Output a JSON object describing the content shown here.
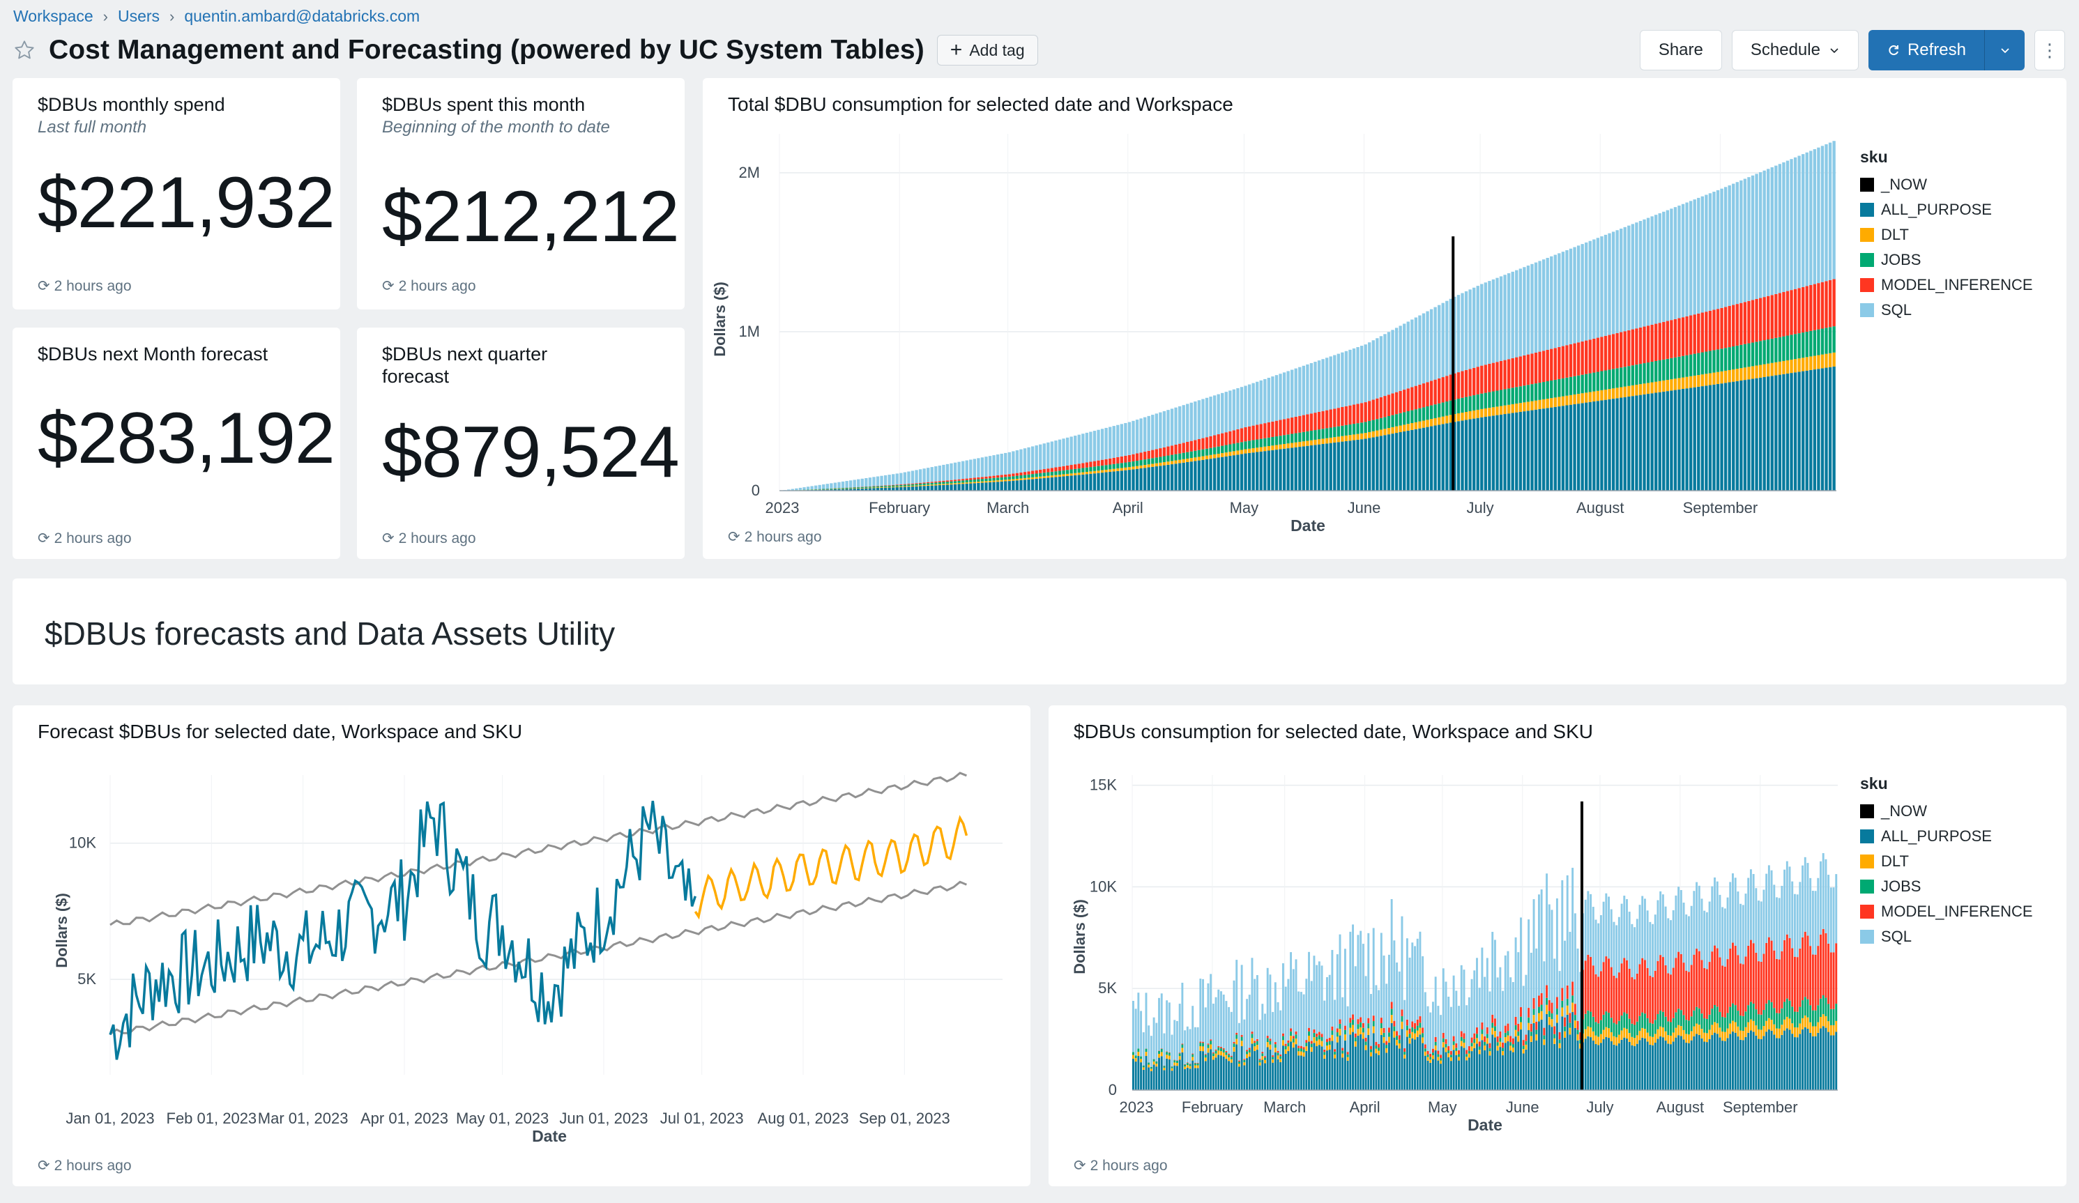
{
  "breadcrumb": [
    "Workspace",
    "Users",
    "quentin.ambard@databricks.com"
  ],
  "dashboard": {
    "title": "Cost Management and Forecasting (powered by UC System Tables)",
    "add_tag": "Add tag"
  },
  "toolbar": {
    "share": "Share",
    "schedule": "Schedule",
    "refresh": "Refresh",
    "more": "⋮"
  },
  "counters": [
    {
      "title": "$DBUs monthly spend",
      "subtitle": "Last full month",
      "value": "$221,932",
      "refreshed": "2 hours ago"
    },
    {
      "title": "$DBUs spent this month",
      "subtitle": "Beginning of the month to date",
      "value": "$212,212",
      "refreshed": "2 hours ago"
    },
    {
      "title": "$DBUs next Month forecast",
      "subtitle": "",
      "value": "$283,192",
      "refreshed": "2 hours ago"
    },
    {
      "title": "$DBUs next quarter forecast",
      "subtitle": "",
      "value": "$879,524",
      "refreshed": "2 hours ago"
    }
  ],
  "section": {
    "title": "$DBUs forecasts and Data Assets Utility"
  },
  "colors": {
    "_NOW": "#000000",
    "ALL_PURPOSE": "#077a9d",
    "DLT": "#ffab00",
    "JOBS": "#00a972",
    "MODEL_INFERENCE": "#ff3621",
    "SQL": "#8bcae7",
    "forecast_actual": "#077a9d",
    "forecast_pred": "#ffab00",
    "forecast_bounds": "#919191"
  },
  "chart_data": [
    {
      "type": "bar",
      "stacked": true,
      "title": "Total $DBU consumption for selected date and Workspace",
      "xlabel": "Date",
      "ylabel": "Dollars ($)",
      "x_ticks": [
        "2023",
        "February",
        "March",
        "April",
        "May",
        "June",
        "July",
        "August",
        "September"
      ],
      "y_ticks": [
        "0",
        "1M",
        "2M"
      ],
      "ylim": [
        0,
        2200000
      ],
      "legend_title": "sku",
      "legend_position": "right",
      "legend": [
        "_NOW",
        "ALL_PURPOSE",
        "DLT",
        "JOBS",
        "MODEL_INFERENCE",
        "SQL"
      ],
      "now_marker": "2023-06-24",
      "series_approx_endpoints": [
        {
          "name": "ALL_PURPOSE",
          "date": "2023-09-30",
          "value": 780000
        },
        {
          "name": "DLT",
          "date": "2023-09-30",
          "value": 90000
        },
        {
          "name": "JOBS",
          "date": "2023-09-30",
          "value": 160000
        },
        {
          "name": "MODEL_INFERENCE",
          "date": "2023-09-30",
          "value": 300000
        },
        {
          "name": "SQL",
          "date": "2023-09-30",
          "value": 880000
        }
      ],
      "total_cumulative": [
        {
          "date": "2023-01-01",
          "value": 0
        },
        {
          "date": "2023-02-01",
          "value": 110000
        },
        {
          "date": "2023-03-01",
          "value": 240000
        },
        {
          "date": "2023-04-01",
          "value": 430000
        },
        {
          "date": "2023-05-01",
          "value": 660000
        },
        {
          "date": "2023-06-01",
          "value": 920000
        },
        {
          "date": "2023-06-24",
          "value": 1220000
        },
        {
          "date": "2023-07-01",
          "value": 1300000
        },
        {
          "date": "2023-08-01",
          "value": 1600000
        },
        {
          "date": "2023-09-01",
          "value": 1900000
        },
        {
          "date": "2023-09-30",
          "value": 2200000
        }
      ],
      "refreshed": "2 hours ago"
    },
    {
      "type": "line",
      "title": "Forecast $DBUs for selected date, Workspace and SKU",
      "xlabel": "Date",
      "ylabel": "Dollars ($)",
      "x_ticks": [
        "Jan 01, 2023",
        "Feb 01, 2023",
        "Mar 01, 2023",
        "Apr 01, 2023",
        "May 01, 2023",
        "Jun 01, 2023",
        "Jul 01, 2023",
        "Aug 01, 2023",
        "Sep 01, 2023"
      ],
      "y_ticks": [
        "5K",
        "10K"
      ],
      "ylim": [
        1500,
        12500
      ],
      "actual": [
        {
          "date": "2023-01-01",
          "value": 3000
        },
        {
          "date": "2023-01-15",
          "value": 5000
        },
        {
          "date": "2023-02-01",
          "value": 5500
        },
        {
          "date": "2023-02-15",
          "value": 6500
        },
        {
          "date": "2023-03-01",
          "value": 6000
        },
        {
          "date": "2023-03-15",
          "value": 7000
        },
        {
          "date": "2023-04-01",
          "value": 8000
        },
        {
          "date": "2023-04-10",
          "value": 11000
        },
        {
          "date": "2023-04-25",
          "value": 7000
        },
        {
          "date": "2023-05-01",
          "value": 7000
        },
        {
          "date": "2023-05-15",
          "value": 4500
        },
        {
          "date": "2023-06-01",
          "value": 7500
        },
        {
          "date": "2023-06-15",
          "value": 10500
        },
        {
          "date": "2023-06-29",
          "value": 7000
        }
      ],
      "forecast": [
        {
          "date": "2023-06-29",
          "value": 8000
        },
        {
          "date": "2023-07-15",
          "value": 8500
        },
        {
          "date": "2023-08-01",
          "value": 9000
        },
        {
          "date": "2023-08-15",
          "value": 9300
        },
        {
          "date": "2023-09-01",
          "value": 9600
        },
        {
          "date": "2023-09-20",
          "value": 10300
        }
      ],
      "upper_bound": [
        {
          "date": "2023-01-01",
          "value": 7000
        },
        {
          "date": "2023-09-20",
          "value": 12500
        }
      ],
      "lower_bound": [
        {
          "date": "2023-01-01",
          "value": 3000
        },
        {
          "date": "2023-09-20",
          "value": 8500
        }
      ],
      "refreshed": "2 hours ago"
    },
    {
      "type": "bar",
      "stacked": true,
      "title": "$DBUs consumption for selected date, Workspace and SKU",
      "xlabel": "Date",
      "ylabel": "Dollars ($)",
      "x_ticks": [
        "2023",
        "February",
        "March",
        "April",
        "May",
        "June",
        "July",
        "August",
        "September"
      ],
      "y_ticks": [
        "0",
        "5K",
        "10K",
        "15K"
      ],
      "ylim": [
        0,
        15500
      ],
      "legend_title": "sku",
      "legend_position": "right",
      "legend": [
        "_NOW",
        "ALL_PURPOSE",
        "DLT",
        "JOBS",
        "MODEL_INFERENCE",
        "SQL"
      ],
      "now_marker": "2023-06-24",
      "approx_daily_totals": [
        {
          "date": "2023-01-15",
          "value": 4500
        },
        {
          "date": "2023-02-15",
          "value": 6000
        },
        {
          "date": "2023-03-15",
          "value": 6500
        },
        {
          "date": "2023-04-10",
          "value": 8500
        },
        {
          "date": "2023-05-01",
          "value": 6000
        },
        {
          "date": "2023-05-20",
          "value": 8000
        },
        {
          "date": "2023-06-15",
          "value": 10000
        },
        {
          "date": "2023-07-15",
          "value": 9500
        },
        {
          "date": "2023-08-15",
          "value": 10500
        },
        {
          "date": "2023-09-30",
          "value": 11800
        }
      ],
      "refreshed": "2 hours ago"
    }
  ]
}
